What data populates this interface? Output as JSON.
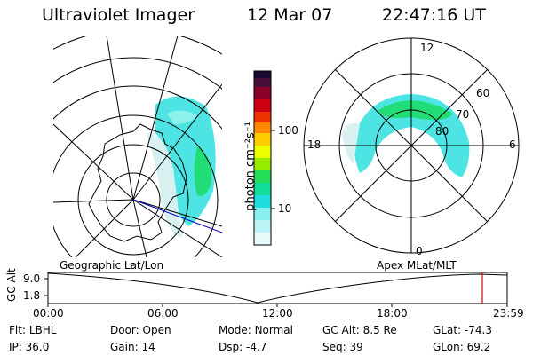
{
  "header": {
    "instrument": "Ultraviolet Imager",
    "date": "12 Mar 07",
    "time": "22:47:16 UT"
  },
  "colorbar": {
    "unit_label": "photon cm⁻²s⁻¹",
    "ticks": [
      "100",
      "10"
    ]
  },
  "maps": {
    "left_label": "Geographic Lat/Lon",
    "right_label": "Apex MLat/MLT",
    "polar_labels": {
      "top": "12",
      "bottom": "0",
      "left": "18",
      "right": "6",
      "lat60": "60",
      "lat70": "70",
      "lat80": "80"
    }
  },
  "timeline": {
    "ylabel": "GC Alt",
    "ytick_top": "9.0",
    "ytick_bottom": "1.8",
    "xticks": [
      "00:00",
      "06:00",
      "12:00",
      "18:00",
      "23:59"
    ],
    "current_marker_color": "#dd0000"
  },
  "info": {
    "row1": [
      {
        "key": "Flt:",
        "value": "LBHL"
      },
      {
        "key": "Door:",
        "value": "Open"
      },
      {
        "key": "Mode:",
        "value": "Normal"
      },
      {
        "key": "GC Alt:",
        "value": "8.5 Re"
      },
      {
        "key": "GLat:",
        "value": "-74.3"
      }
    ],
    "row2": [
      {
        "key": "IP:",
        "value": "36.0"
      },
      {
        "key": "Gain:",
        "value": "14"
      },
      {
        "key": "Dsp:",
        "value": "-4.7"
      },
      {
        "key": "Seq:",
        "value": "39"
      },
      {
        "key": "GLon:",
        "value": "69.2"
      }
    ]
  },
  "colors": {
    "aurora_cyan": "#4fe4e4",
    "aurora_green": "#22dd77",
    "aurora_light": "#d8f0f0",
    "marker_blue": "#0000cc"
  }
}
